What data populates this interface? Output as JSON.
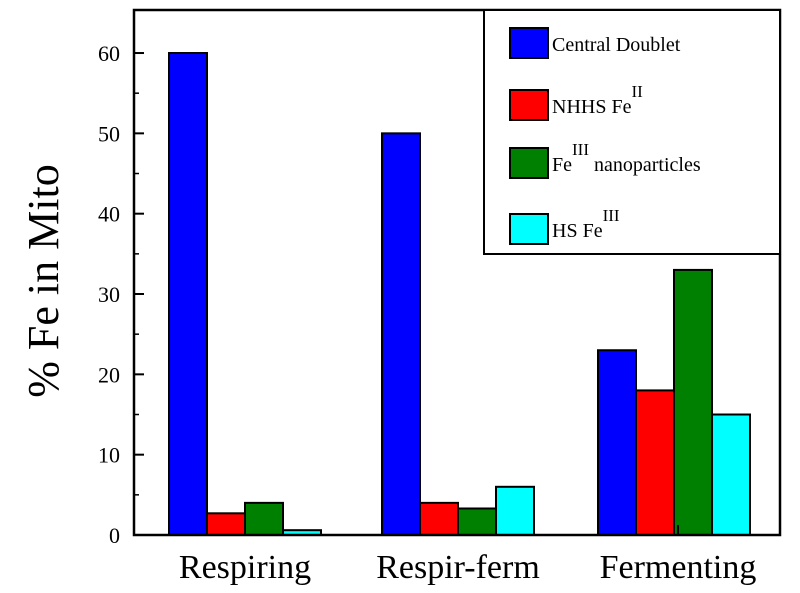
{
  "chart_data": {
    "type": "bar",
    "categories": [
      "Respiring",
      "Respir-ferm",
      "Fermenting"
    ],
    "ylabel": "% Fe in Mito",
    "xlabel": "",
    "ylim": [
      0,
      65
    ],
    "yticks": [
      0,
      10,
      20,
      30,
      40,
      50,
      60
    ],
    "legend_position": "top-right",
    "grid": false,
    "series": [
      {
        "name": "Central Doublet",
        "color": "#0000ff",
        "values": [
          60,
          50,
          23
        ]
      },
      {
        "name": "NHHS Fe^II",
        "color": "#ff0000",
        "values": [
          2.7,
          4,
          18
        ]
      },
      {
        "name": "Fe^III nanoparticles",
        "color": "#008000",
        "values": [
          4,
          3.3,
          33
        ]
      },
      {
        "name": "HS Fe^III",
        "color": "#00ffff",
        "values": [
          0.6,
          6,
          15
        ]
      }
    ]
  },
  "legend_labels": [
    {
      "main": "Central Doublet",
      "sup": "",
      "after": ""
    },
    {
      "main": "NHHS Fe",
      "sup": "II",
      "after": ""
    },
    {
      "main": "Fe",
      "sup": "III",
      "after": " nanoparticles"
    },
    {
      "main": "HS Fe",
      "sup": "III",
      "after": ""
    }
  ]
}
